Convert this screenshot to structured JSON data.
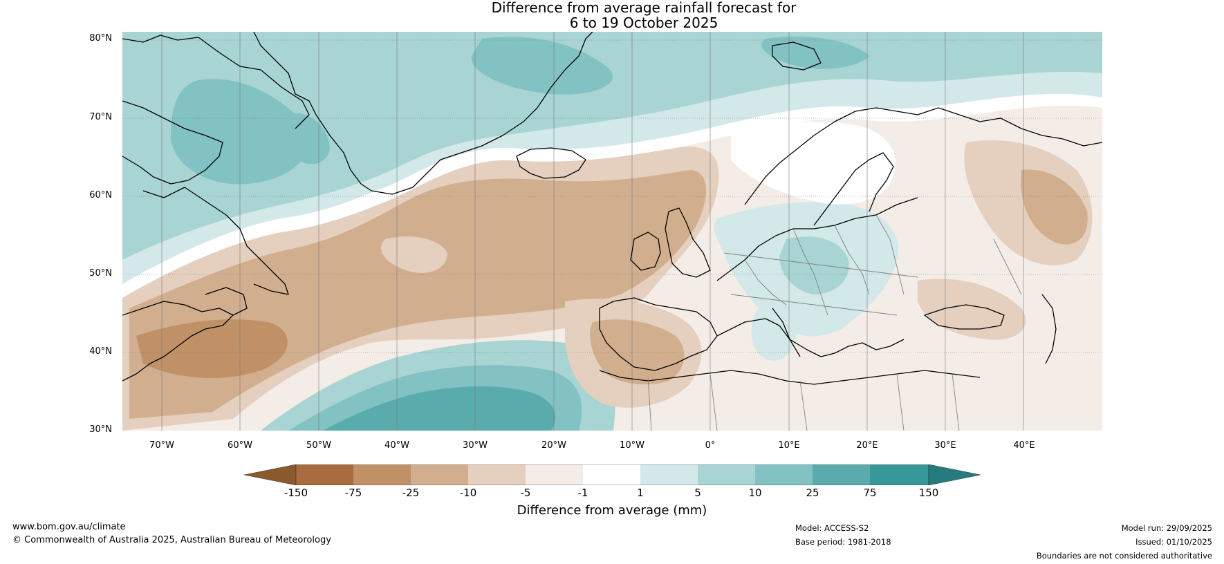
{
  "title": {
    "line1": "Difference from average rainfall forecast for",
    "line2": "6 to 19 October 2025"
  },
  "map": {
    "latitude_labels": [
      "80°N",
      "70°N",
      "60°N",
      "50°N",
      "40°N",
      "30°N"
    ],
    "longitude_labels": [
      "70°W",
      "60°W",
      "50°W",
      "40°W",
      "30°W",
      "20°W",
      "10°W",
      "0°",
      "10°E",
      "20°E",
      "30°E",
      "40°E"
    ],
    "colors": {
      "dry_150": "#8b5a2b",
      "dry_75": "#a86c3e",
      "dry_25": "#c09066",
      "dry_10": "#d1ae8e",
      "dry_5": "#e5cfbf",
      "dry_1": "#f4ede7",
      "neutral": "#ffffff",
      "wet_1": "#d3e8e8",
      "wet_5": "#a8d4d4",
      "wet_10": "#82c2c2",
      "wet_25": "#5aacac",
      "wet_75": "#369898",
      "wet_150": "#247c7c",
      "coast": "#000000",
      "border": "#808080"
    }
  },
  "colorbar": {
    "ticks": [
      "-150",
      "-75",
      "-25",
      "-10",
      "-5",
      "-1",
      "1",
      "5",
      "10",
      "25",
      "75",
      "150"
    ],
    "label": "Difference from average (mm)"
  },
  "footer": {
    "website": "www.bom.gov.au/climate",
    "copyright": "© Commonwealth of Australia 2025, Australian Bureau of Meteorology",
    "model": "Model: ACCESS-S2",
    "base_period": "Base period: 1981-2018",
    "model_run": "Model run: 29/09/2025",
    "issued": "Issued: 01/10/2025",
    "disclaimer": "Boundaries are not considered authoritative"
  }
}
